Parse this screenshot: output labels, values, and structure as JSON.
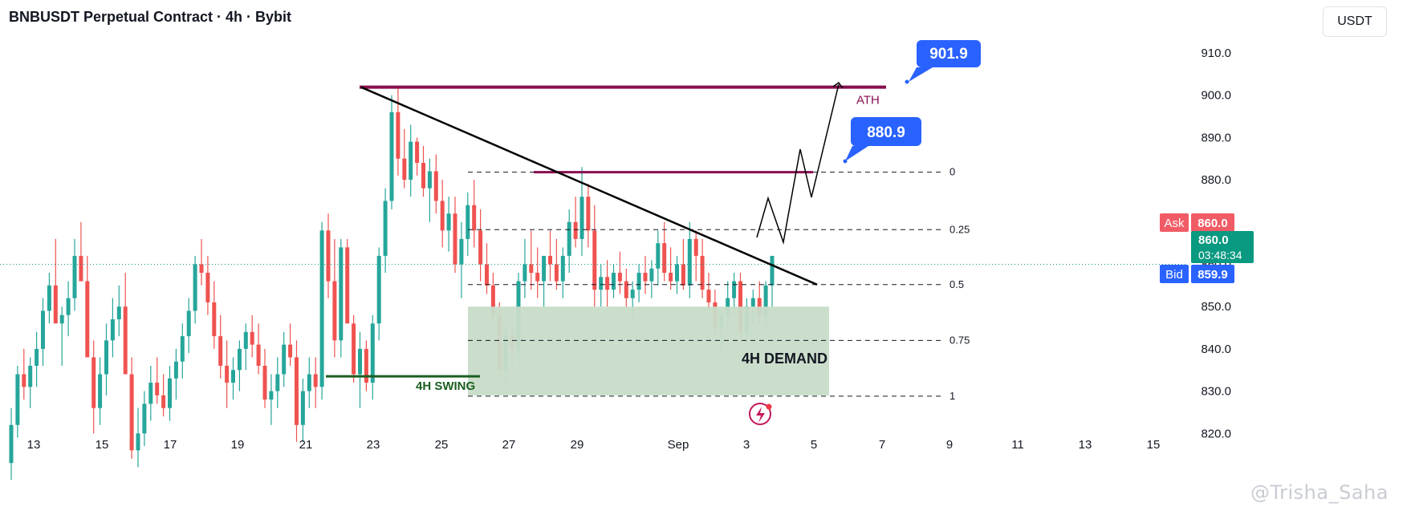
{
  "header": {
    "title": "BNBUSDT Perpetual Contract · 4h · Bybit",
    "currency_button": "USDT"
  },
  "price_axis": {
    "ticks": [
      "910.0",
      "900.0",
      "890.0",
      "880.0",
      "870.0",
      "860.0",
      "850.0",
      "840.0",
      "830.0",
      "820.0"
    ]
  },
  "time_axis": {
    "ticks": [
      "13",
      "15",
      "17",
      "19",
      "21",
      "23",
      "25",
      "27",
      "29",
      "Sep",
      "3",
      "5",
      "7",
      "9",
      "11",
      "13",
      "15"
    ]
  },
  "quote": {
    "ask_label": "Ask",
    "ask_value": "860.0",
    "last_value": "860.0",
    "countdown": "03:48:34",
    "bid_label": "Bid",
    "bid_value": "859.9"
  },
  "fib_levels": [
    {
      "label": "0",
      "price": 881.8
    },
    {
      "label": "0.25",
      "price": 868.2
    },
    {
      "label": "0.5",
      "price": 855.2
    },
    {
      "label": "0.75",
      "price": 842.0
    },
    {
      "label": "1",
      "price": 828.8
    }
  ],
  "annotations": {
    "ath_label": "ATH",
    "ath_price": 901.9,
    "target1": "880.9",
    "target2": "901.9",
    "demand_label": "4H DEMAND",
    "demand_range": [
      829,
      850
    ],
    "swing_label": "4H SWING",
    "swing_price": 833.5
  },
  "watermark": "@Trisha_Saha",
  "colors": {
    "up": "#26a69a",
    "down": "#ef5350",
    "accent": "#2962ff",
    "ath": "#880e4f",
    "demand": "#c8dcc9",
    "swing": "#1b5e20",
    "ask": "#f05b65",
    "last": "#0a9981"
  },
  "chart_data": {
    "type": "candlestick",
    "title": "BNBUSDT Perpetual Contract · 4h · Bybit",
    "y_range": [
      813,
      918
    ],
    "x_labels": [
      "13",
      "15",
      "17",
      "19",
      "21",
      "23",
      "25",
      "27",
      "29",
      "Sep",
      "3",
      "5",
      "7",
      "9",
      "11",
      "13",
      "15"
    ],
    "current_price": 860.0,
    "candles_ohlc": [
      [
        813,
        826,
        809,
        822
      ],
      [
        822,
        836,
        819,
        834
      ],
      [
        834,
        840,
        828,
        831
      ],
      [
        831,
        838,
        826,
        836
      ],
      [
        836,
        844,
        831,
        840
      ],
      [
        840,
        852,
        836,
        849
      ],
      [
        849,
        858,
        846,
        855
      ],
      [
        855,
        866,
        848,
        846
      ],
      [
        846,
        850,
        836,
        848
      ],
      [
        848,
        856,
        843,
        852
      ],
      [
        852,
        866,
        849,
        862
      ],
      [
        862,
        870,
        858,
        856
      ],
      [
        856,
        862,
        840,
        838
      ],
      [
        838,
        842,
        820,
        826
      ],
      [
        826,
        838,
        822,
        834
      ],
      [
        834,
        846,
        829,
        842
      ],
      [
        842,
        852,
        838,
        847
      ],
      [
        847,
        855,
        843,
        850
      ],
      [
        850,
        858,
        840,
        834
      ],
      [
        834,
        838,
        814,
        816
      ],
      [
        816,
        826,
        812,
        820
      ],
      [
        820,
        830,
        817,
        827
      ],
      [
        827,
        836,
        823,
        832
      ],
      [
        832,
        838,
        827,
        829
      ],
      [
        829,
        834,
        824,
        826
      ],
      [
        826,
        836,
        823,
        833
      ],
      [
        833,
        840,
        828,
        837
      ],
      [
        837,
        846,
        833,
        843
      ],
      [
        843,
        852,
        839,
        849
      ],
      [
        849,
        862,
        846,
        860
      ],
      [
        860,
        866,
        855,
        858
      ],
      [
        858,
        862,
        848,
        851
      ],
      [
        851,
        856,
        840,
        843
      ],
      [
        843,
        848,
        833,
        836
      ],
      [
        836,
        842,
        826,
        832
      ],
      [
        832,
        838,
        828,
        835
      ],
      [
        835,
        842,
        830,
        840
      ],
      [
        840,
        846,
        835,
        844
      ],
      [
        844,
        848,
        838,
        841
      ],
      [
        841,
        846,
        834,
        836
      ],
      [
        836,
        840,
        826,
        828
      ],
      [
        828,
        834,
        822,
        830
      ],
      [
        830,
        838,
        826,
        834
      ],
      [
        834,
        844,
        831,
        841
      ],
      [
        841,
        846,
        836,
        838
      ],
      [
        838,
        842,
        818,
        822
      ],
      [
        822,
        833,
        818,
        830
      ],
      [
        830,
        838,
        826,
        834
      ],
      [
        834,
        838,
        826,
        831
      ],
      [
        831,
        870,
        828,
        868
      ],
      [
        868,
        872,
        852,
        856
      ],
      [
        856,
        866,
        838,
        842
      ],
      [
        842,
        866,
        838,
        864
      ],
      [
        864,
        866,
        848,
        846
      ],
      [
        846,
        848,
        832,
        834
      ],
      [
        834,
        844,
        826,
        840
      ],
      [
        840,
        842,
        830,
        832
      ],
      [
        832,
        848,
        828,
        846
      ],
      [
        846,
        864,
        842,
        862
      ],
      [
        862,
        878,
        858,
        875
      ],
      [
        875,
        900,
        873,
        896
      ],
      [
        896,
        902,
        881,
        885
      ],
      [
        885,
        892,
        878,
        880
      ],
      [
        880,
        893,
        876,
        889
      ],
      [
        889,
        890,
        881,
        884
      ],
      [
        884,
        888,
        876,
        878
      ],
      [
        878,
        885,
        870,
        882
      ],
      [
        882,
        886,
        872,
        875
      ],
      [
        875,
        880,
        864,
        868
      ],
      [
        868,
        876,
        863,
        872
      ],
      [
        872,
        876,
        858,
        860
      ],
      [
        860,
        870,
        852,
        866
      ],
      [
        866,
        877,
        862,
        874
      ],
      [
        874,
        880,
        864,
        868
      ],
      [
        868,
        873,
        856,
        860
      ],
      [
        860,
        865,
        853,
        855
      ],
      [
        855,
        858,
        846,
        848
      ],
      [
        848,
        851,
        833,
        835
      ],
      [
        835,
        846,
        832,
        843
      ],
      [
        843,
        845,
        836,
        840
      ],
      [
        840,
        858,
        837,
        856
      ],
      [
        856,
        866,
        852,
        860
      ],
      [
        860,
        868,
        854,
        858
      ],
      [
        858,
        864,
        852,
        856
      ],
      [
        856,
        862,
        850,
        862
      ],
      [
        862,
        868,
        856,
        860
      ],
      [
        860,
        866,
        854,
        856
      ],
      [
        856,
        864,
        852,
        862
      ],
      [
        862,
        873,
        858,
        870
      ],
      [
        870,
        876,
        864,
        866
      ],
      [
        866,
        883,
        862,
        876
      ],
      [
        876,
        879,
        864,
        868
      ],
      [
        868,
        874,
        850,
        854
      ],
      [
        854,
        860,
        850,
        857
      ],
      [
        857,
        861,
        850,
        854
      ],
      [
        854,
        860,
        852,
        858
      ],
      [
        858,
        863,
        853,
        856
      ],
      [
        856,
        859,
        850,
        852
      ],
      [
        852,
        856,
        846,
        854
      ],
      [
        854,
        860,
        851,
        858
      ],
      [
        858,
        862,
        853,
        856
      ],
      [
        856,
        861,
        852,
        859
      ],
      [
        859,
        868,
        855,
        865
      ],
      [
        865,
        870,
        856,
        858
      ],
      [
        858,
        864,
        854,
        856
      ],
      [
        856,
        862,
        853,
        860
      ],
      [
        860,
        866,
        854,
        855
      ],
      [
        855,
        870,
        852,
        866
      ],
      [
        866,
        868,
        856,
        862
      ],
      [
        862,
        866,
        852,
        854
      ],
      [
        854,
        858,
        849,
        851
      ],
      [
        851,
        854,
        843,
        845
      ],
      [
        845,
        849,
        839,
        848
      ],
      [
        848,
        856,
        844,
        852
      ],
      [
        852,
        858,
        848,
        856
      ],
      [
        856,
        858,
        841,
        844
      ],
      [
        844,
        852,
        841,
        850
      ],
      [
        850,
        854,
        846,
        852
      ],
      [
        852,
        856,
        846,
        848
      ],
      [
        848,
        856,
        845,
        855
      ],
      [
        855,
        861,
        850,
        862
      ]
    ]
  }
}
